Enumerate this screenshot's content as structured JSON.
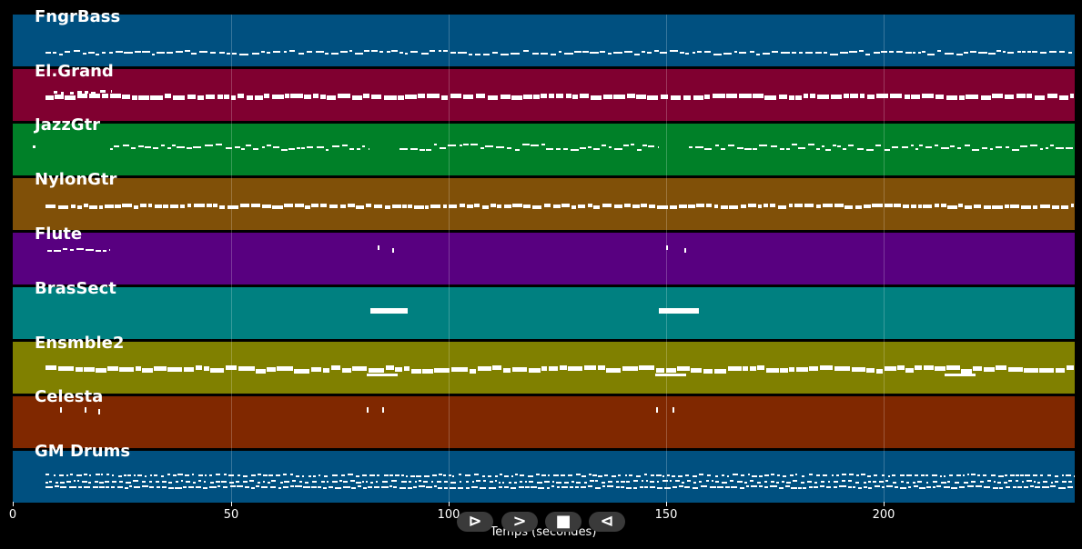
{
  "tracks": [
    {
      "name": "FngrBass",
      "color": "#005080"
    },
    {
      "name": "El.Grand",
      "color": "#800030"
    },
    {
      "name": "JazzGtr",
      "color": "#008028"
    },
    {
      "name": "NylonGtr",
      "color": "#805008"
    },
    {
      "name": "Flute",
      "color": "#580080"
    },
    {
      "name": "BrasSect",
      "color": "#008080"
    },
    {
      "name": "Ensmble2",
      "color": "#808000"
    },
    {
      "name": "Celesta",
      "color": "#802800"
    },
    {
      "name": "GM Drums",
      "color": "#005080"
    }
  ],
  "x_axis": {
    "ticks": [
      "0",
      "50",
      "100",
      "150",
      "200"
    ],
    "label": "Temps (secondes)",
    "range": [
      0,
      244
    ]
  },
  "transport": {
    "play_label": "⊳",
    "forward_label": ">",
    "stop_label": "■",
    "back_label": "⊲"
  }
}
